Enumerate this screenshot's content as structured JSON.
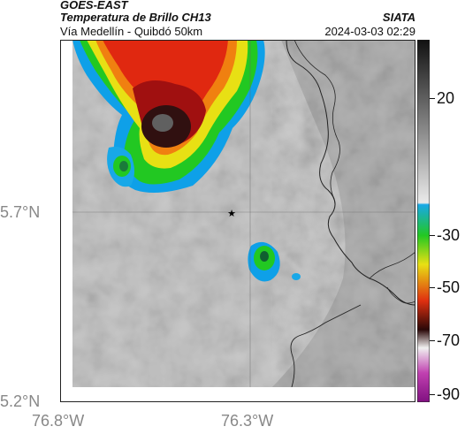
{
  "header": {
    "satellite": "GOES-EAST",
    "product": "Temperatura de Brillo CH13",
    "route": "Vía Medellín - Quibdó 50km",
    "org": "SIATA",
    "datetime": "2024-03-03 02:29"
  },
  "axes": {
    "lat_labels": [
      "5.7°N",
      "5.2°N"
    ],
    "lon_labels": [
      "76.8°W",
      "76.3°W"
    ]
  },
  "colorbar": {
    "labels": [
      "20",
      "-30",
      "-50",
      "-70",
      "-90"
    ],
    "units": ""
  },
  "colors": {
    "cloud_warm": "#c8c8c8",
    "cold_red": "#e02010",
    "core_black": "#1a1a1a",
    "green": "#18c818",
    "cyan": "#18a8e8",
    "border": "#222222"
  },
  "markers": {
    "star": "★"
  }
}
